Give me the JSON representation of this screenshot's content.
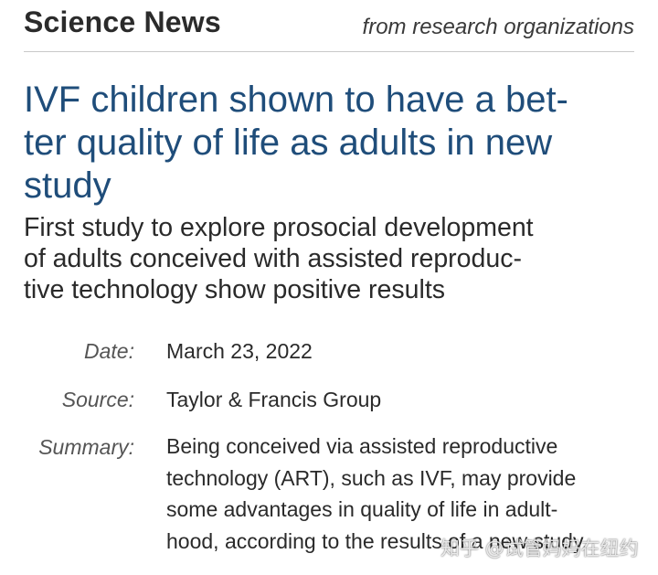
{
  "masthead": {
    "title": "Science News",
    "tagline": "from research organizations"
  },
  "article": {
    "headline_lines": [
      "IVF children shown to have a bet-",
      "ter quality of life as adults in new",
      "study"
    ],
    "subheadline_lines": [
      "First study to explore prosocial development",
      "of adults conceived with assisted reproduc-",
      "tive technology show positive results"
    ]
  },
  "meta": {
    "date_label": "Date:",
    "date_value": "March 23, 2022",
    "source_label": "Source:",
    "source_value": "Taylor & Francis Group",
    "summary_label": "Summary:",
    "summary_lines": [
      "Being conceived via assisted reproductive",
      "technology (ART), such as IVF, may provide",
      "some advantages in quality of life in adult-",
      "hood, according to the results of a new study."
    ]
  },
  "watermark": {
    "text": "知乎 @试管妈妈在纽约"
  }
}
